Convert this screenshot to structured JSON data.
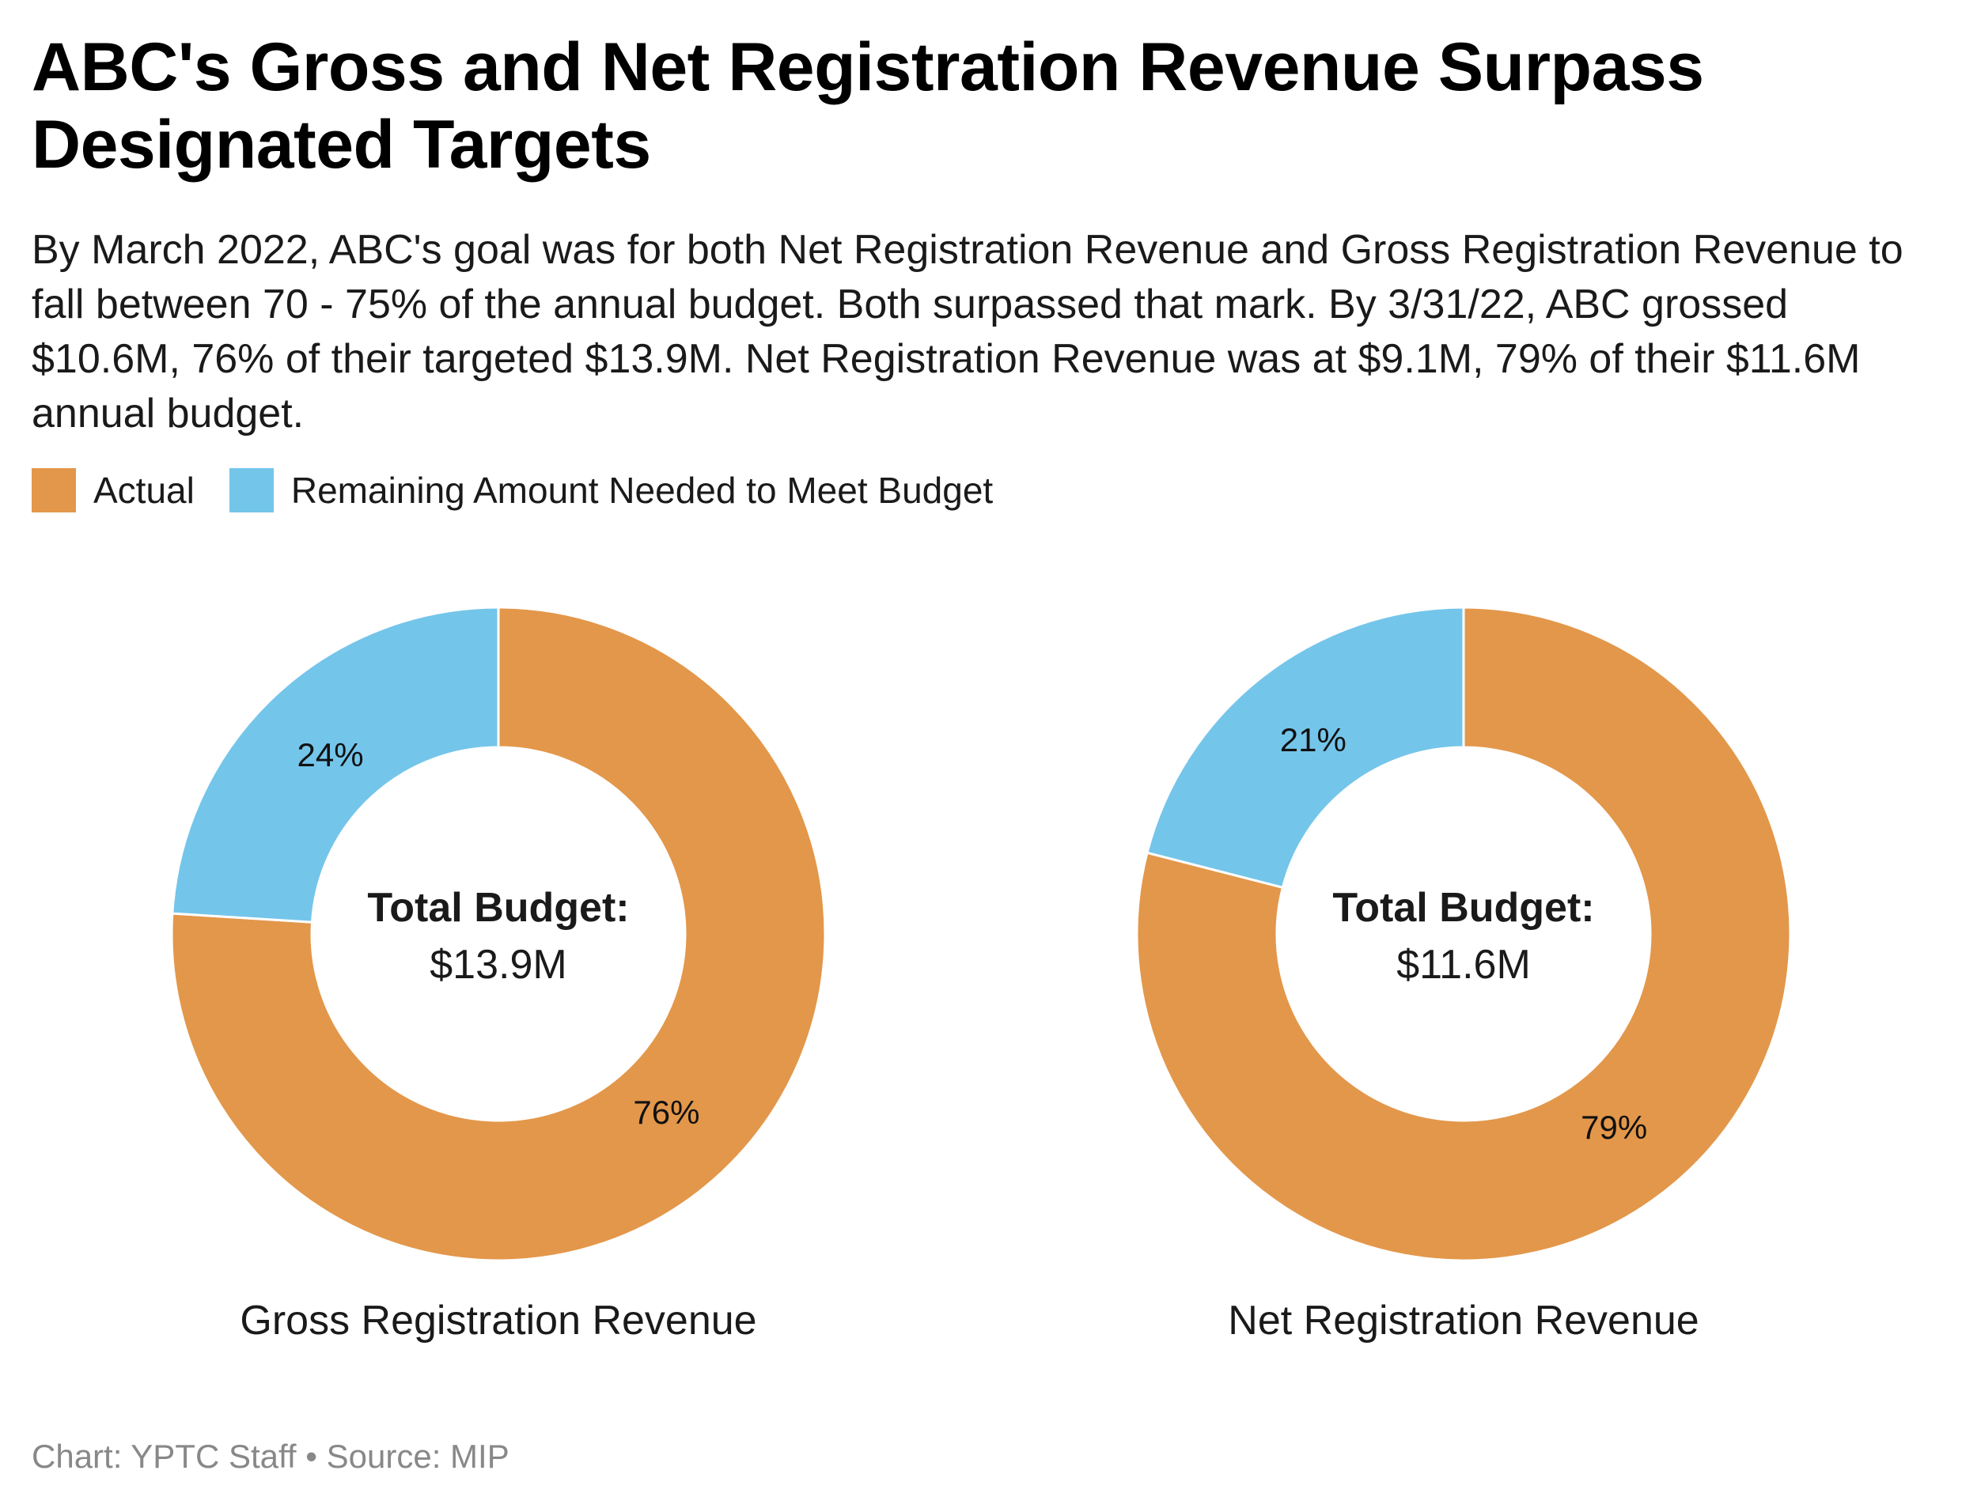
{
  "title": "ABC's Gross and Net Registration Revenue Surpass Designated Targets",
  "subtitle": "By March 2022, ABC's goal was for both Net Registration Revenue and Gross Registration Revenue to fall between 70 - 75% of the annual budget. Both surpassed that mark. By 3/31/22, ABC grossed $10.6M, 76% of their targeted $13.9M. Net Registration Revenue was at $9.1M, 79% of their $11.6M annual budget.",
  "legend": [
    {
      "label": "Actual",
      "color": "#E3974A"
    },
    {
      "label": "Remaining Amount Needed to Meet Budget",
      "color": "#74C5EA"
    }
  ],
  "footer": "Chart: YPTC Staff • Source: MIP",
  "chart_data": [
    {
      "type": "pie",
      "variant": "donut",
      "title": "Gross Registration Revenue",
      "center_label_bold": "Total Budget:",
      "center_label_value": "$13.9M",
      "categories": [
        "Actual",
        "Remaining Amount Needed to Meet Budget"
      ],
      "values": [
        76,
        24
      ],
      "value_labels": [
        "76%",
        "24%"
      ],
      "colors": [
        "#E3974A",
        "#74C5EA"
      ],
      "start": "12 o'clock",
      "direction": "clockwise",
      "legend_position": "top-left"
    },
    {
      "type": "pie",
      "variant": "donut",
      "title": "Net Registration Revenue",
      "center_label_bold": "Total Budget:",
      "center_label_value": "$11.6M",
      "categories": [
        "Actual",
        "Remaining Amount Needed to Meet Budget"
      ],
      "values": [
        79,
        21
      ],
      "value_labels": [
        "79%",
        "21%"
      ],
      "colors": [
        "#E3974A",
        "#74C5EA"
      ],
      "start": "12 o'clock",
      "direction": "clockwise",
      "legend_position": "top-left"
    }
  ]
}
